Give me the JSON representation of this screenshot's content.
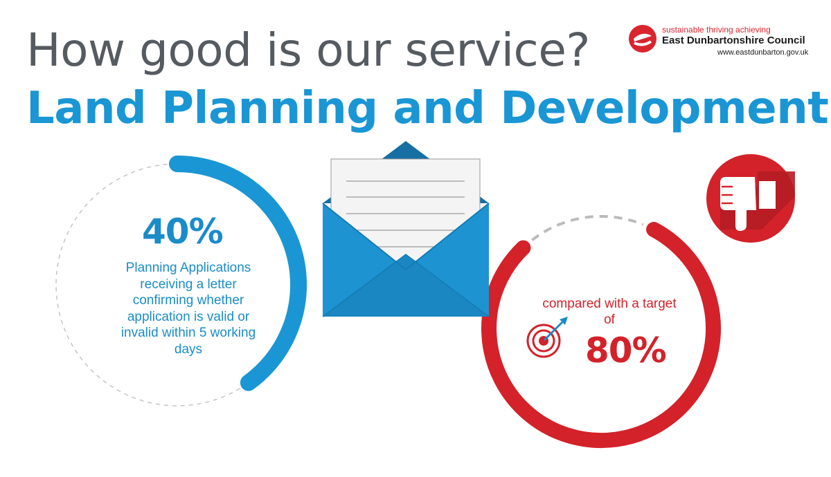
{
  "header": {
    "question": "How good is our service?",
    "service_name": "Land Planning and Development"
  },
  "logo": {
    "tagline": "sustainable thriving achieving",
    "name": "East Dunbartonshire Council",
    "url": "www.eastdunbarton.gov.uk"
  },
  "performance": {
    "value": "40%",
    "fraction": 0.4,
    "description": "Planning Applications receiving a letter confirming whether application is valid or invalid within 5 working days"
  },
  "target": {
    "label": "compared with a target of",
    "value": "80%",
    "fraction": 0.8,
    "rating_icon": "thumbs-down-icon"
  },
  "colors": {
    "heading_grey": "#555b60",
    "accent_blue": "#1a96d4",
    "envelope_blue": "#1b8ac7",
    "accent_red": "#d3222a",
    "dash_grey": "#bbbbbb"
  },
  "icons": {
    "envelope": "envelope-letter-icon",
    "target": "target-icon"
  }
}
